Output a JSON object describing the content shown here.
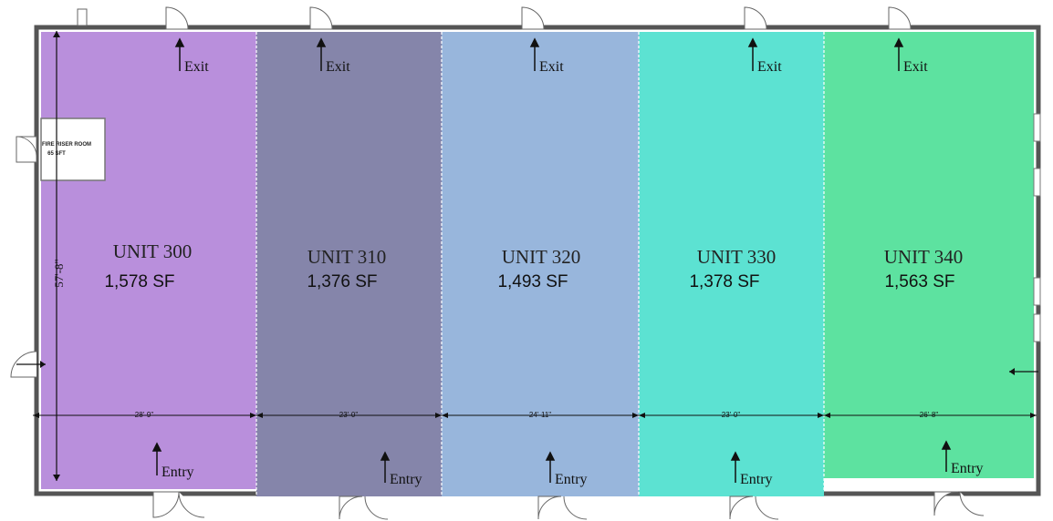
{
  "units": [
    {
      "name": "UNIT 300",
      "area": "1,578 SF",
      "width": "28'-9\"",
      "exit": "Exit",
      "entry": "Entry",
      "color": "#b98fdc"
    },
    {
      "name": "UNIT 310",
      "area": "1,376 SF",
      "width": "23'-0\"",
      "exit": "Exit",
      "entry": "Entry",
      "color": "#8585aa"
    },
    {
      "name": "UNIT 320",
      "area": "1,493 SF",
      "width": "24'-11\"",
      "exit": "Exit",
      "entry": "Entry",
      "color": "#98b6dc"
    },
    {
      "name": "UNIT 330",
      "area": "1,378 SF",
      "width": "23'-0\"",
      "exit": "Exit",
      "entry": "Entry",
      "color": "#5ce2d2"
    },
    {
      "name": "UNIT 340",
      "area": "1,563 SF",
      "width": "26'-8\"",
      "exit": "Exit",
      "entry": "Entry",
      "color": "#5de2a0"
    }
  ],
  "building_depth": "57'-8\"",
  "fire_room": {
    "line1": "FIRE RISER ROOM",
    "line2": "65 SFT"
  }
}
